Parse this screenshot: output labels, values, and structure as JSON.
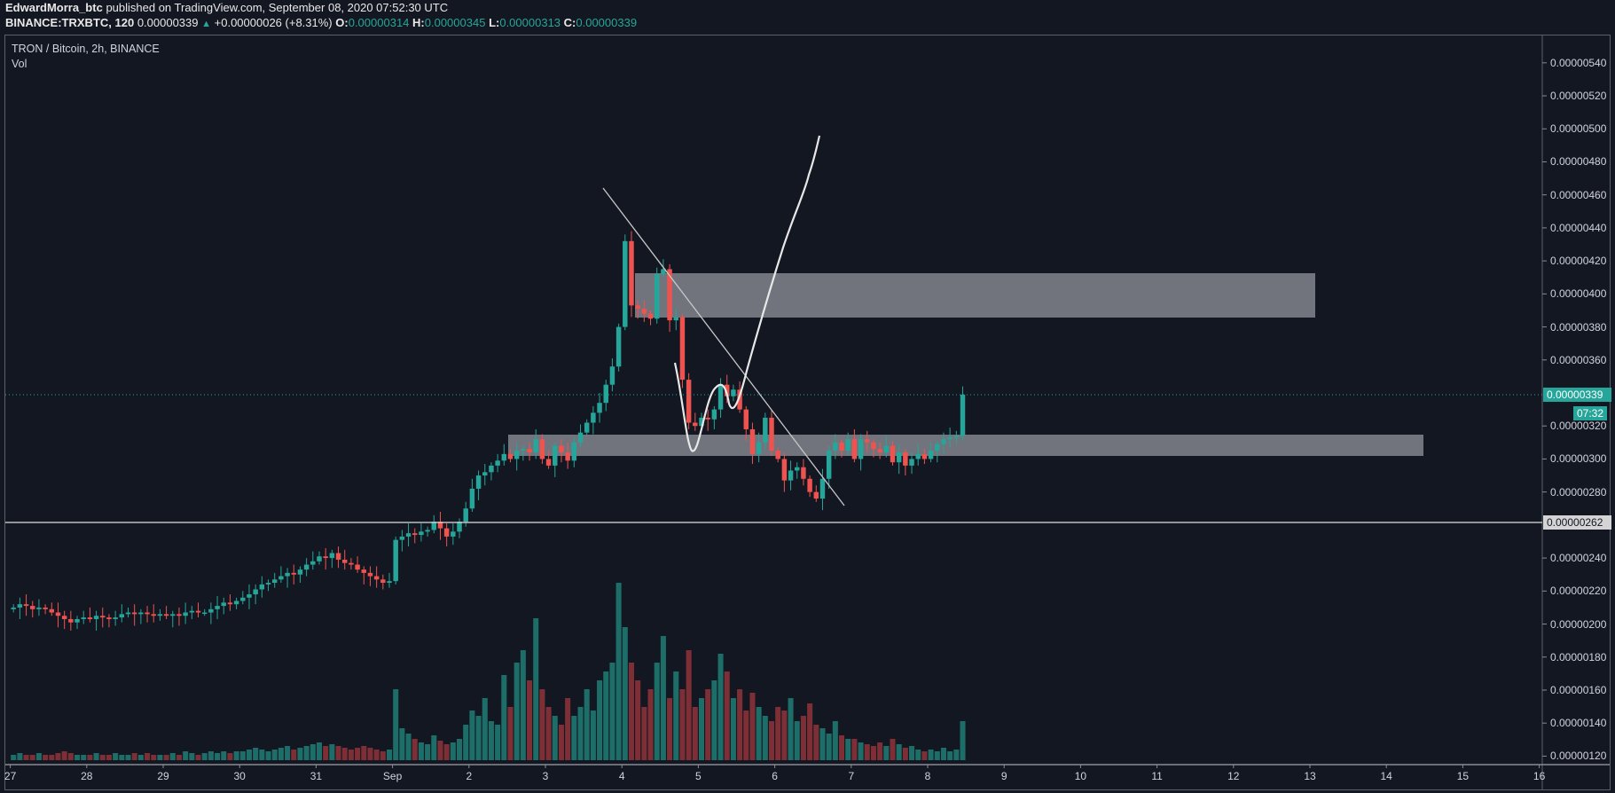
{
  "header": {
    "author": "EdwardMorra_btc",
    "published": "published on TradingView.com, September 08, 2020 07:52:30 UTC",
    "symbol": "BINANCE:TRXBTC, 120",
    "last": "0.00000339",
    "change": "+0.00000026 (+8.31%)",
    "o_label": "O:",
    "o": "0.00000314",
    "h_label": "H:",
    "h": "0.00000345",
    "l_label": "L:",
    "l": "0.00000313",
    "c_label": "C:",
    "c": "0.00000339"
  },
  "legend": {
    "title": "TRON / Bitcoin, 2h, BINANCE",
    "vol": "Vol"
  },
  "colors": {
    "up": "#26a69a",
    "down": "#ef5350",
    "vol_up": "#1d6e68",
    "vol_down": "#7d2f35",
    "zone": "#8a8c93",
    "bg": "#131722"
  },
  "tags": {
    "last_price": "0.00000339",
    "countdown": "07:32",
    "hline_price": "0.00000262"
  },
  "chart_data": {
    "type": "candlestick",
    "title": "TRON / Bitcoin, 2h, BINANCE",
    "price_unit": "1e-8 BTC",
    "ylim": [
      112,
      552
    ],
    "y_ticks": [
      "0.00000540",
      "0.00000520",
      "0.00000500",
      "0.00000480",
      "0.00000460",
      "0.00000440",
      "0.00000420",
      "0.00000400",
      "0.00000380",
      "0.00000360",
      "0.00000320",
      "0.00000300",
      "0.00000280",
      "0.00000240",
      "0.00000220",
      "0.00000200",
      "0.00000180",
      "0.00000160",
      "0.00000140",
      "0.00000120"
    ],
    "y_tick_values": [
      540,
      520,
      500,
      480,
      460,
      440,
      420,
      400,
      380,
      360,
      320,
      300,
      280,
      240,
      220,
      200,
      180,
      160,
      140,
      120
    ],
    "x_ticks": [
      "27",
      "28",
      "29",
      "30",
      "31",
      "Sep",
      "2",
      "3",
      "4",
      "5",
      "6",
      "7",
      "8",
      "9",
      "10",
      "11",
      "12",
      "13",
      "14",
      "15",
      "16"
    ],
    "candle_start_open": 209,
    "closes": [
      210,
      212,
      211,
      209,
      210,
      209,
      207,
      205,
      203,
      201,
      203,
      204,
      203,
      205,
      204,
      203,
      204,
      206,
      207,
      206,
      207,
      206,
      205,
      206,
      205,
      206,
      205,
      207,
      208,
      207,
      207,
      209,
      211,
      213,
      212,
      214,
      216,
      218,
      221,
      224,
      225,
      227,
      229,
      231,
      230,
      233,
      236,
      238,
      241,
      240,
      243,
      239,
      237,
      236,
      233,
      231,
      229,
      227,
      225,
      226,
      251,
      253,
      255,
      254,
      256,
      257,
      262,
      258,
      253,
      256,
      262,
      270,
      282,
      290,
      292,
      296,
      299,
      303,
      300,
      305,
      306,
      304,
      312,
      300,
      296,
      308,
      304,
      299,
      310,
      316,
      322,
      328,
      334,
      345,
      356,
      380,
      432,
      393,
      391,
      388,
      385,
      412,
      415,
      384,
      386,
      348,
      322,
      320,
      325,
      324,
      330,
      345,
      338,
      342,
      330,
      318,
      303,
      310,
      325,
      305,
      300,
      287,
      293,
      295,
      288,
      280,
      276,
      288,
      305,
      310,
      305,
      312,
      300,
      312,
      310,
      306,
      304,
      308,
      298,
      304,
      296,
      300,
      303,
      300,
      305,
      309,
      312,
      313,
      314,
      339
    ],
    "volumes": [
      3,
      4,
      3,
      3,
      4,
      3,
      3,
      4,
      5,
      4,
      3,
      3,
      3,
      4,
      3,
      3,
      4,
      3,
      3,
      4,
      3,
      4,
      3,
      3,
      3,
      4,
      3,
      5,
      4,
      3,
      4,
      5,
      4,
      5,
      4,
      5,
      5,
      6,
      7,
      6,
      5,
      6,
      7,
      8,
      6,
      7,
      8,
      9,
      10,
      8,
      9,
      8,
      7,
      6,
      7,
      8,
      7,
      6,
      5,
      6,
      40,
      18,
      15,
      12,
      10,
      9,
      14,
      11,
      9,
      10,
      12,
      20,
      28,
      25,
      35,
      22,
      20,
      48,
      30,
      55,
      62,
      45,
      80,
      40,
      30,
      25,
      20,
      35,
      25,
      30,
      40,
      28,
      45,
      50,
      55,
      100,
      75,
      55,
      45,
      30,
      40,
      55,
      70,
      35,
      50,
      40,
      62,
      30,
      35,
      40,
      45,
      60,
      50,
      35,
      40,
      28,
      38,
      30,
      25,
      22,
      30,
      28,
      35,
      22,
      25,
      32,
      20,
      18,
      15,
      22,
      14,
      12,
      12,
      10,
      9,
      8,
      10,
      8,
      12,
      9,
      7,
      8,
      6,
      5,
      6,
      5,
      7,
      5,
      6,
      22
    ]
  }
}
